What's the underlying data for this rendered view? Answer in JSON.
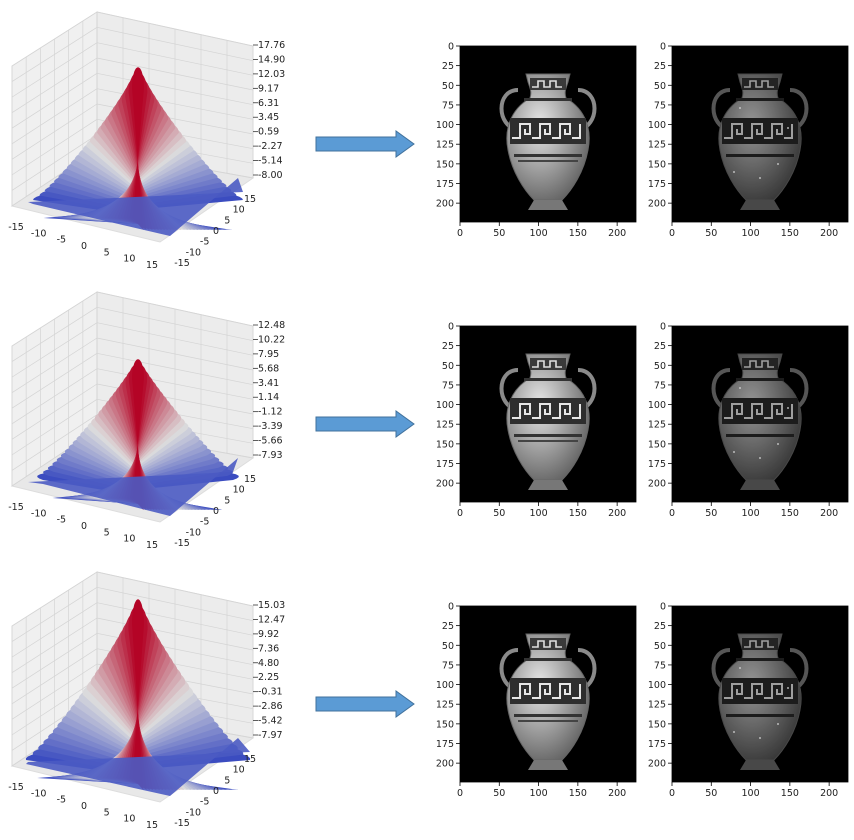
{
  "rows": [
    {
      "surface": {
        "z_ticks": [
          "17.76",
          "14.90",
          "12.03",
          "9.17",
          "6.31",
          "3.45",
          "0.59",
          "-2.27",
          "-5.14",
          "-8.00"
        ],
        "x_ticks": [
          "-15",
          "-10",
          "-5",
          "0",
          "5",
          "10",
          "15"
        ],
        "y_ticks": [
          "15",
          "10",
          "5",
          "0",
          "-5",
          "-10",
          "-15"
        ]
      },
      "images": [
        {
          "x_ticks": [
            "0",
            "50",
            "100",
            "150",
            "200"
          ],
          "y_ticks": [
            "0",
            "25",
            "50",
            "75",
            "100",
            "125",
            "150",
            "175",
            "200"
          ]
        },
        {
          "x_ticks": [
            "0",
            "50",
            "100",
            "150",
            "200"
          ],
          "y_ticks": [
            "0",
            "25",
            "50",
            "75",
            "100",
            "125",
            "150",
            "175",
            "200"
          ]
        }
      ]
    },
    {
      "surface": {
        "z_ticks": [
          "12.48",
          "10.22",
          "7.95",
          "5.68",
          "3.41",
          "1.14",
          "-1.12",
          "-3.39",
          "-5.66",
          "-7.93"
        ],
        "x_ticks": [
          "-15",
          "-10",
          "-5",
          "0",
          "5",
          "10",
          "15"
        ],
        "y_ticks": [
          "15",
          "10",
          "5",
          "0",
          "-5",
          "-10",
          "-15"
        ]
      },
      "images": [
        {
          "x_ticks": [
            "0",
            "50",
            "100",
            "150",
            "200"
          ],
          "y_ticks": [
            "0",
            "25",
            "50",
            "75",
            "100",
            "125",
            "150",
            "175",
            "200"
          ]
        },
        {
          "x_ticks": [
            "0",
            "50",
            "100",
            "150",
            "200"
          ],
          "y_ticks": [
            "0",
            "25",
            "50",
            "75",
            "100",
            "125",
            "150",
            "175",
            "200"
          ]
        }
      ]
    },
    {
      "surface": {
        "z_ticks": [
          "15.03",
          "12.47",
          "9.92",
          "7.36",
          "4.80",
          "2.25",
          "-0.31",
          "-2.86",
          "-5.42",
          "-7.97"
        ],
        "x_ticks": [
          "-15",
          "-10",
          "-5",
          "0",
          "5",
          "10",
          "15"
        ],
        "y_ticks": [
          "15",
          "10",
          "5",
          "0",
          "-5",
          "-10",
          "-15"
        ]
      },
      "images": [
        {
          "x_ticks": [
            "0",
            "50",
            "100",
            "150",
            "200"
          ],
          "y_ticks": [
            "0",
            "25",
            "50",
            "75",
            "100",
            "125",
            "150",
            "175",
            "200"
          ]
        },
        {
          "x_ticks": [
            "0",
            "50",
            "100",
            "150",
            "200"
          ],
          "y_ticks": [
            "0",
            "25",
            "50",
            "75",
            "100",
            "125",
            "150",
            "175",
            "200"
          ]
        }
      ]
    }
  ],
  "chart_data": [
    {
      "type": "surface",
      "colormap": "coolwarm",
      "zlim": [
        -8.0,
        17.76
      ],
      "xlim": [
        -15,
        15
      ],
      "ylim": [
        -15,
        15
      ],
      "peaks": [
        {
          "x": 0,
          "y": 0,
          "z": 17.76
        }
      ]
    },
    {
      "type": "surface",
      "colormap": "coolwarm",
      "zlim": [
        -7.93,
        12.48
      ],
      "xlim": [
        -15,
        15
      ],
      "ylim": [
        -15,
        15
      ],
      "peaks": [
        {
          "x": 0,
          "y": 0,
          "z": 12.48
        }
      ]
    },
    {
      "type": "surface",
      "colormap": "coolwarm",
      "zlim": [
        -7.97,
        15.03
      ],
      "xlim": [
        -15,
        15
      ],
      "ylim": [
        -15,
        15
      ],
      "peaks": [
        {
          "x": 0,
          "y": 0,
          "z": 15.03
        }
      ]
    },
    {
      "type": "image",
      "xlim": [
        0,
        224
      ],
      "ylim": [
        224,
        0
      ],
      "panels": 6
    }
  ],
  "colors": {
    "arrow_fill": "#5b9bd5",
    "arrow_stroke": "#41719c",
    "cool": "#3b4cc0",
    "warm": "#b40426",
    "image_bg": "#000000"
  }
}
